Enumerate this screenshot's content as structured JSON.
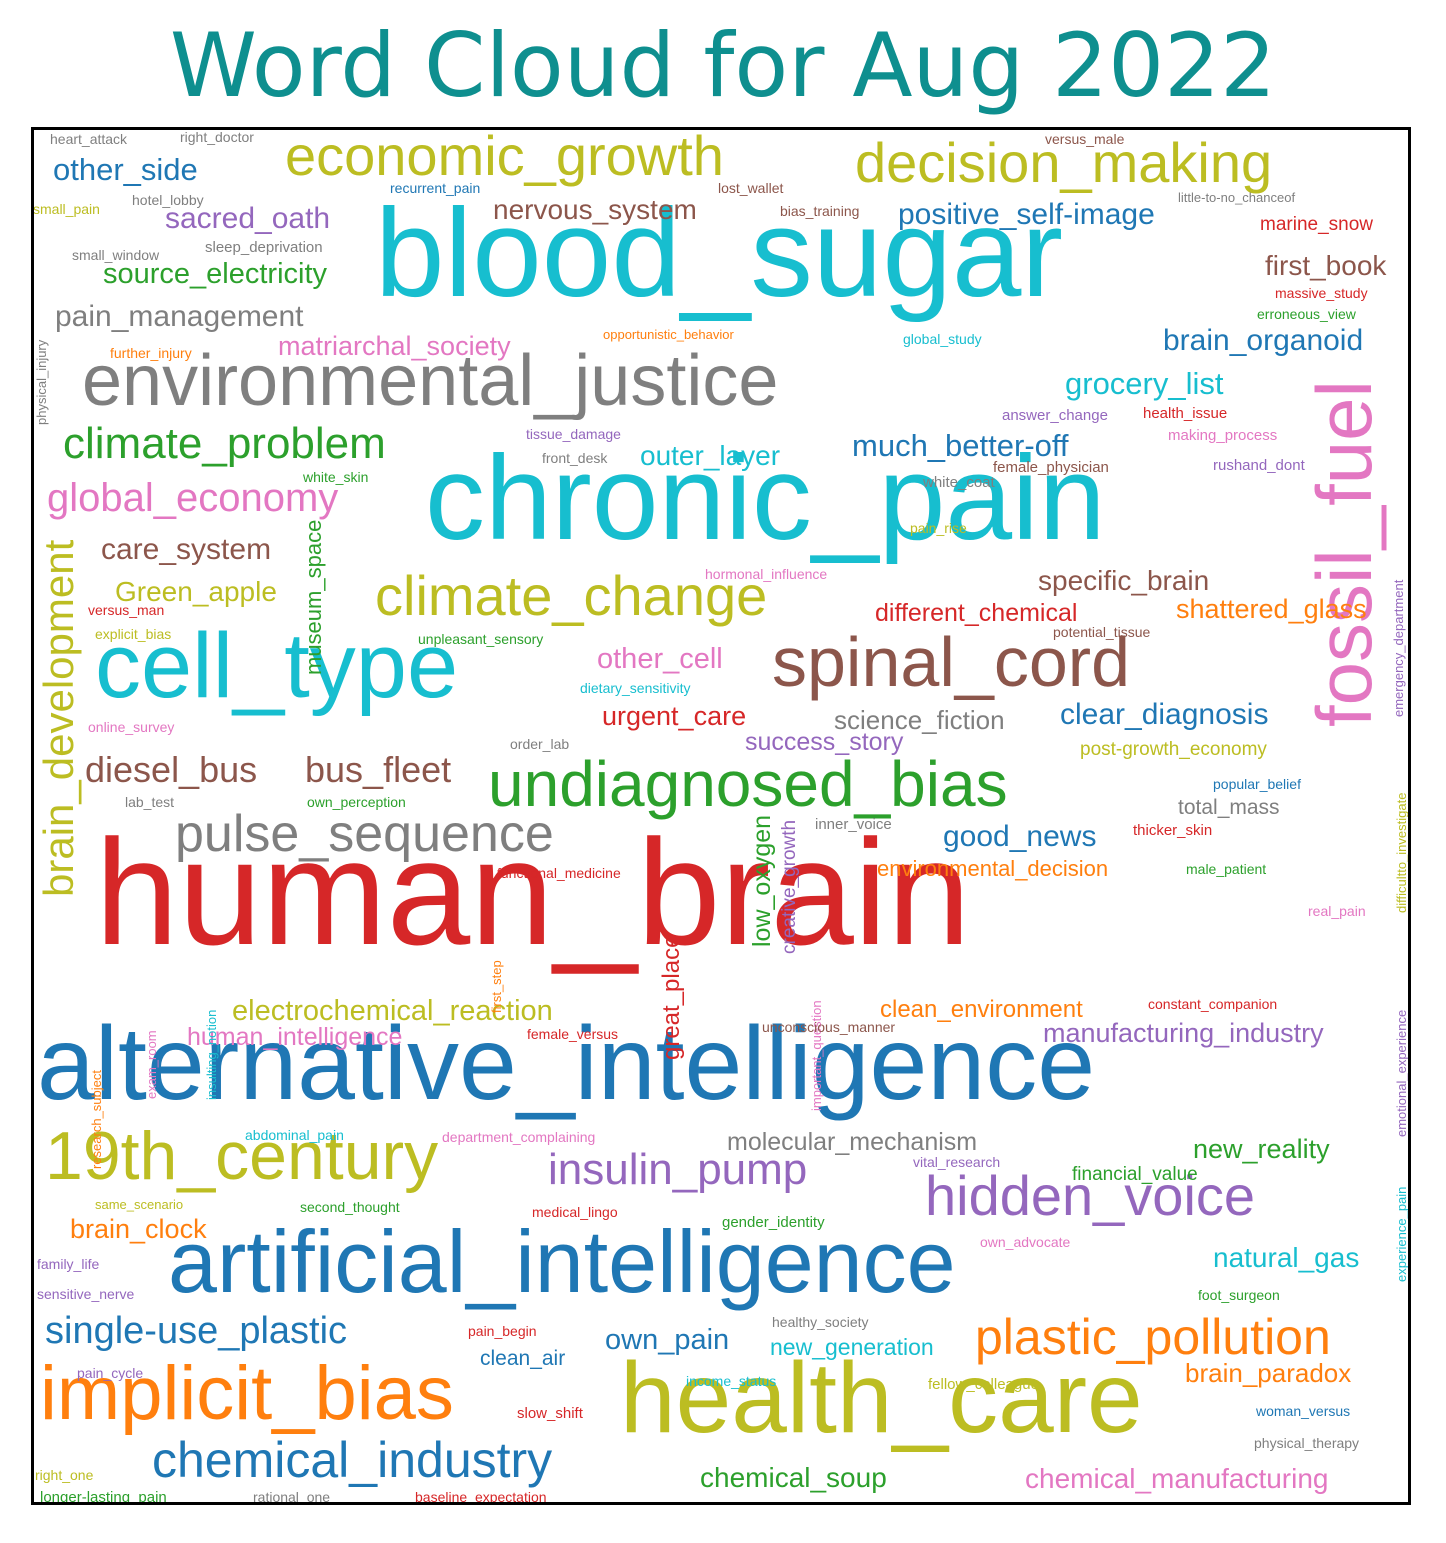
{
  "title": "Word Cloud for Aug 2022",
  "palette": {
    "blue": "#1f77b4",
    "orange": "#ff7f0e",
    "green": "#2ca02c",
    "red": "#d62728",
    "purple": "#9467bd",
    "brown": "#8c564b",
    "pink": "#e377c2",
    "gray": "#7f7f7f",
    "olive": "#bcbd22",
    "cyan": "#17becf"
  },
  "words": [
    {
      "t": "human_brain",
      "c": "red",
      "s": 150
    },
    {
      "t": "blood_sugar",
      "c": "cyan",
      "s": 125
    },
    {
      "t": "chronic_pain",
      "c": "cyan",
      "s": 120
    },
    {
      "t": "alternative_intelligence",
      "c": "blue",
      "s": 104
    },
    {
      "t": "health_care",
      "c": "olive",
      "s": 100
    },
    {
      "t": "artificial_intelligence",
      "c": "blue",
      "s": 88
    },
    {
      "t": "cell_type",
      "c": "cyan",
      "s": 92
    },
    {
      "t": "environmental_justice",
      "c": "gray",
      "s": 72
    },
    {
      "t": "fossil_fuel",
      "c": "pink",
      "s": 78,
      "v": true
    },
    {
      "t": "implicit_bias",
      "c": "orange",
      "s": 76
    },
    {
      "t": "spinal_cord",
      "c": "brown",
      "s": 70
    },
    {
      "t": "19th_century",
      "c": "olive",
      "s": 68
    },
    {
      "t": "undiagnosed_bias",
      "c": "green",
      "s": 64
    },
    {
      "t": "economic_growth",
      "c": "olive",
      "s": 56
    },
    {
      "t": "decision_making",
      "c": "olive",
      "s": 56
    },
    {
      "t": "climate_change",
      "c": "olive",
      "s": 56
    },
    {
      "t": "hidden_voice",
      "c": "purple",
      "s": 56
    },
    {
      "t": "chemical_industry",
      "c": "blue",
      "s": 50
    },
    {
      "t": "pulse_sequence",
      "c": "gray",
      "s": 52
    },
    {
      "t": "plastic_pollution",
      "c": "orange",
      "s": 50
    },
    {
      "t": "climate_problem",
      "c": "green",
      "s": 44
    },
    {
      "t": "brain_development",
      "c": "olive",
      "s": 42,
      "v": true
    },
    {
      "t": "insulin_pump",
      "c": "purple",
      "s": 44
    },
    {
      "t": "single-use_plastic",
      "c": "blue",
      "s": 38
    },
    {
      "t": "global_economy",
      "c": "pink",
      "s": 40
    },
    {
      "t": "diesel_bus",
      "c": "brown",
      "s": 36
    },
    {
      "t": "bus_fleet",
      "c": "brown",
      "s": 36
    },
    {
      "t": "pain_management",
      "c": "gray",
      "s": 30
    },
    {
      "t": "source_electricity",
      "c": "green",
      "s": 29
    },
    {
      "t": "sacred_oath",
      "c": "purple",
      "s": 30
    },
    {
      "t": "other_side",
      "c": "blue",
      "s": 31
    },
    {
      "t": "nervous_system",
      "c": "brown",
      "s": 28
    },
    {
      "t": "positive_self-image",
      "c": "blue",
      "s": 30
    },
    {
      "t": "first_book",
      "c": "brown",
      "s": 28
    },
    {
      "t": "brain_organoid",
      "c": "blue",
      "s": 30
    },
    {
      "t": "grocery_list",
      "c": "cyan",
      "s": 31
    },
    {
      "t": "much_better-off",
      "c": "blue",
      "s": 31
    },
    {
      "t": "outer_layer",
      "c": "cyan",
      "s": 28
    },
    {
      "t": "care_system",
      "c": "brown",
      "s": 30
    },
    {
      "t": "Green_apple",
      "c": "olive",
      "s": 28
    },
    {
      "t": "specific_brain",
      "c": "brown",
      "s": 28
    },
    {
      "t": "shattered_glass",
      "c": "orange",
      "s": 27
    },
    {
      "t": "different_chemical",
      "c": "red",
      "s": 25
    },
    {
      "t": "other_cell",
      "c": "pink",
      "s": 29
    },
    {
      "t": "urgent_care",
      "c": "red",
      "s": 27
    },
    {
      "t": "science_fiction",
      "c": "gray",
      "s": 26
    },
    {
      "t": "clear_diagnosis",
      "c": "blue",
      "s": 30
    },
    {
      "t": "success_story",
      "c": "purple",
      "s": 25
    },
    {
      "t": "matriarchal_society",
      "c": "pink",
      "s": 27
    },
    {
      "t": "museum_space",
      "c": "green",
      "s": 22,
      "v": true
    },
    {
      "t": "low_oxygen",
      "c": "green",
      "s": 25,
      "v": true
    },
    {
      "t": "great_place",
      "c": "red",
      "s": 24,
      "v": true
    },
    {
      "t": "creative_growth",
      "c": "purple",
      "s": 19,
      "v": true
    },
    {
      "t": "electrochemical_reaction",
      "c": "olive",
      "s": 29
    },
    {
      "t": "human_intelligence",
      "c": "pink",
      "s": 25
    },
    {
      "t": "good_news",
      "c": "blue",
      "s": 30
    },
    {
      "t": "environmental_decision",
      "c": "orange",
      "s": 22
    },
    {
      "t": "manufacturing_industry",
      "c": "purple",
      "s": 27
    },
    {
      "t": "clean_environment",
      "c": "orange",
      "s": 24
    },
    {
      "t": "molecular_mechanism",
      "c": "gray",
      "s": 25
    },
    {
      "t": "new_reality",
      "c": "green",
      "s": 27
    },
    {
      "t": "brain_clock",
      "c": "orange",
      "s": 27
    },
    {
      "t": "natural_gas",
      "c": "cyan",
      "s": 28
    },
    {
      "t": "own_pain",
      "c": "blue",
      "s": 29
    },
    {
      "t": "clean_air",
      "c": "blue",
      "s": 21
    },
    {
      "t": "new_generation",
      "c": "cyan",
      "s": 23
    },
    {
      "t": "brain_paradox",
      "c": "orange",
      "s": 26
    },
    {
      "t": "chemical_soup",
      "c": "green",
      "s": 28
    },
    {
      "t": "chemical_manufacturing",
      "c": "pink",
      "s": 28
    },
    {
      "t": "post-growth_economy",
      "c": "olive",
      "s": 19
    },
    {
      "t": "total_mass",
      "c": "gray",
      "s": 21
    },
    {
      "t": "financial_value",
      "c": "green",
      "s": 19
    },
    {
      "t": "heart_attack",
      "c": "gray",
      "s": 14
    },
    {
      "t": "right_doctor",
      "c": "gray",
      "s": 14
    },
    {
      "t": "hotel_lobby",
      "c": "gray",
      "s": 14
    },
    {
      "t": "small_pain",
      "c": "olive",
      "s": 14
    },
    {
      "t": "recurrent_pain",
      "c": "blue",
      "s": 14
    },
    {
      "t": "lost_wallet",
      "c": "brown",
      "s": 14
    },
    {
      "t": "versus_male",
      "c": "brown",
      "s": 14
    },
    {
      "t": "little-to-no_chanceof",
      "c": "gray",
      "s": 13
    },
    {
      "t": "bias_training",
      "c": "brown",
      "s": 14
    },
    {
      "t": "marine_snow",
      "c": "red",
      "s": 19
    },
    {
      "t": "small_window",
      "c": "gray",
      "s": 14
    },
    {
      "t": "sleep_deprivation",
      "c": "gray",
      "s": 15
    },
    {
      "t": "physical_injury",
      "c": "gray",
      "s": 13,
      "v": true
    },
    {
      "t": "massive_study",
      "c": "red",
      "s": 14
    },
    {
      "t": "erroneous_view",
      "c": "green",
      "s": 14
    },
    {
      "t": "opportunistic_behavior",
      "c": "orange",
      "s": 13
    },
    {
      "t": "global_study",
      "c": "cyan",
      "s": 14
    },
    {
      "t": "further_injury",
      "c": "orange",
      "s": 14
    },
    {
      "t": "answer_change",
      "c": "purple",
      "s": 15
    },
    {
      "t": "health_issue",
      "c": "red",
      "s": 15
    },
    {
      "t": "tissue_damage",
      "c": "purple",
      "s": 14
    },
    {
      "t": "making_process",
      "c": "pink",
      "s": 15
    },
    {
      "t": "emergency_department",
      "c": "purple",
      "s": 13,
      "v": true
    },
    {
      "t": "front_desk",
      "c": "gray",
      "s": 14
    },
    {
      "t": "female_physician",
      "c": "brown",
      "s": 15
    },
    {
      "t": "rushand_dont",
      "c": "purple",
      "s": 15
    },
    {
      "t": "white_skin",
      "c": "green",
      "s": 14
    },
    {
      "t": "white_coat",
      "c": "gray",
      "s": 15
    },
    {
      "t": "pain_rise",
      "c": "olive",
      "s": 14
    },
    {
      "t": "hormonal_influence",
      "c": "pink",
      "s": 14
    },
    {
      "t": "versus_man",
      "c": "red",
      "s": 14
    },
    {
      "t": "explicit_bias",
      "c": "olive",
      "s": 14
    },
    {
      "t": "unpleasant_sensory",
      "c": "green",
      "s": 14
    },
    {
      "t": "potential_tissue",
      "c": "brown",
      "s": 14
    },
    {
      "t": "dietary_sensitivity",
      "c": "cyan",
      "s": 14
    },
    {
      "t": "online_survey",
      "c": "pink",
      "s": 14
    },
    {
      "t": "order_lab",
      "c": "gray",
      "s": 14
    },
    {
      "t": "difficultto_investigate",
      "c": "olive",
      "s": 13,
      "v": true
    },
    {
      "t": "popular_belief",
      "c": "blue",
      "s": 14
    },
    {
      "t": "lab_test",
      "c": "gray",
      "s": 14
    },
    {
      "t": "own_perception",
      "c": "green",
      "s": 14
    },
    {
      "t": "inner_voice",
      "c": "gray",
      "s": 15
    },
    {
      "t": "thicker_skin",
      "c": "red",
      "s": 15
    },
    {
      "t": "functional_medicine",
      "c": "red",
      "s": 14
    },
    {
      "t": "male_patient",
      "c": "green",
      "s": 14
    },
    {
      "t": "emotional_experience",
      "c": "purple",
      "s": 13,
      "v": true
    },
    {
      "t": "first_step",
      "c": "orange",
      "s": 13,
      "v": true
    },
    {
      "t": "important_question",
      "c": "pink",
      "s": 13,
      "v": true
    },
    {
      "t": "real_pain",
      "c": "pink",
      "s": 14
    },
    {
      "t": "insulting_notion",
      "c": "cyan",
      "s": 13,
      "v": true
    },
    {
      "t": "exam_room",
      "c": "pink",
      "s": 13,
      "v": true
    },
    {
      "t": "research_subject",
      "c": "orange",
      "s": 13,
      "v": true
    },
    {
      "t": "constant_companion",
      "c": "red",
      "s": 14
    },
    {
      "t": "unconscious_manner",
      "c": "brown",
      "s": 14
    },
    {
      "t": "female_versus",
      "c": "red",
      "s": 14
    },
    {
      "t": "abdominal_pain",
      "c": "cyan",
      "s": 14
    },
    {
      "t": "department_complaining",
      "c": "pink",
      "s": 14
    },
    {
      "t": "vital_research",
      "c": "purple",
      "s": 14
    },
    {
      "t": "experience_pain",
      "c": "cyan",
      "s": 13,
      "v": true
    },
    {
      "t": "same_scenario",
      "c": "olive",
      "s": 13
    },
    {
      "t": "second_thought",
      "c": "green",
      "s": 14
    },
    {
      "t": "medical_lingo",
      "c": "red",
      "s": 14
    },
    {
      "t": "gender_identity",
      "c": "green",
      "s": 15
    },
    {
      "t": "own_advocate",
      "c": "pink",
      "s": 14
    },
    {
      "t": "family_life",
      "c": "purple",
      "s": 14
    },
    {
      "t": "sensitive_nerve",
      "c": "purple",
      "s": 14
    },
    {
      "t": "foot_surgeon",
      "c": "green",
      "s": 14
    },
    {
      "t": "pain_begin",
      "c": "red",
      "s": 14
    },
    {
      "t": "healthy_society",
      "c": "gray",
      "s": 14
    },
    {
      "t": "pain_cycle",
      "c": "purple",
      "s": 14
    },
    {
      "t": "income_status",
      "c": "cyan",
      "s": 14
    },
    {
      "t": "fellow_colleague",
      "c": "olive",
      "s": 15
    },
    {
      "t": "slow_shift",
      "c": "red",
      "s": 15
    },
    {
      "t": "woman_versus",
      "c": "blue",
      "s": 14
    },
    {
      "t": "physical_therapy",
      "c": "gray",
      "s": 14
    },
    {
      "t": "right_one",
      "c": "olive",
      "s": 14
    },
    {
      "t": "longer-lasting_pain",
      "c": "green",
      "s": 15
    },
    {
      "t": "rational_one",
      "c": "gray",
      "s": 14
    },
    {
      "t": "baseline_expectation",
      "c": "red",
      "s": 14
    }
  ]
}
